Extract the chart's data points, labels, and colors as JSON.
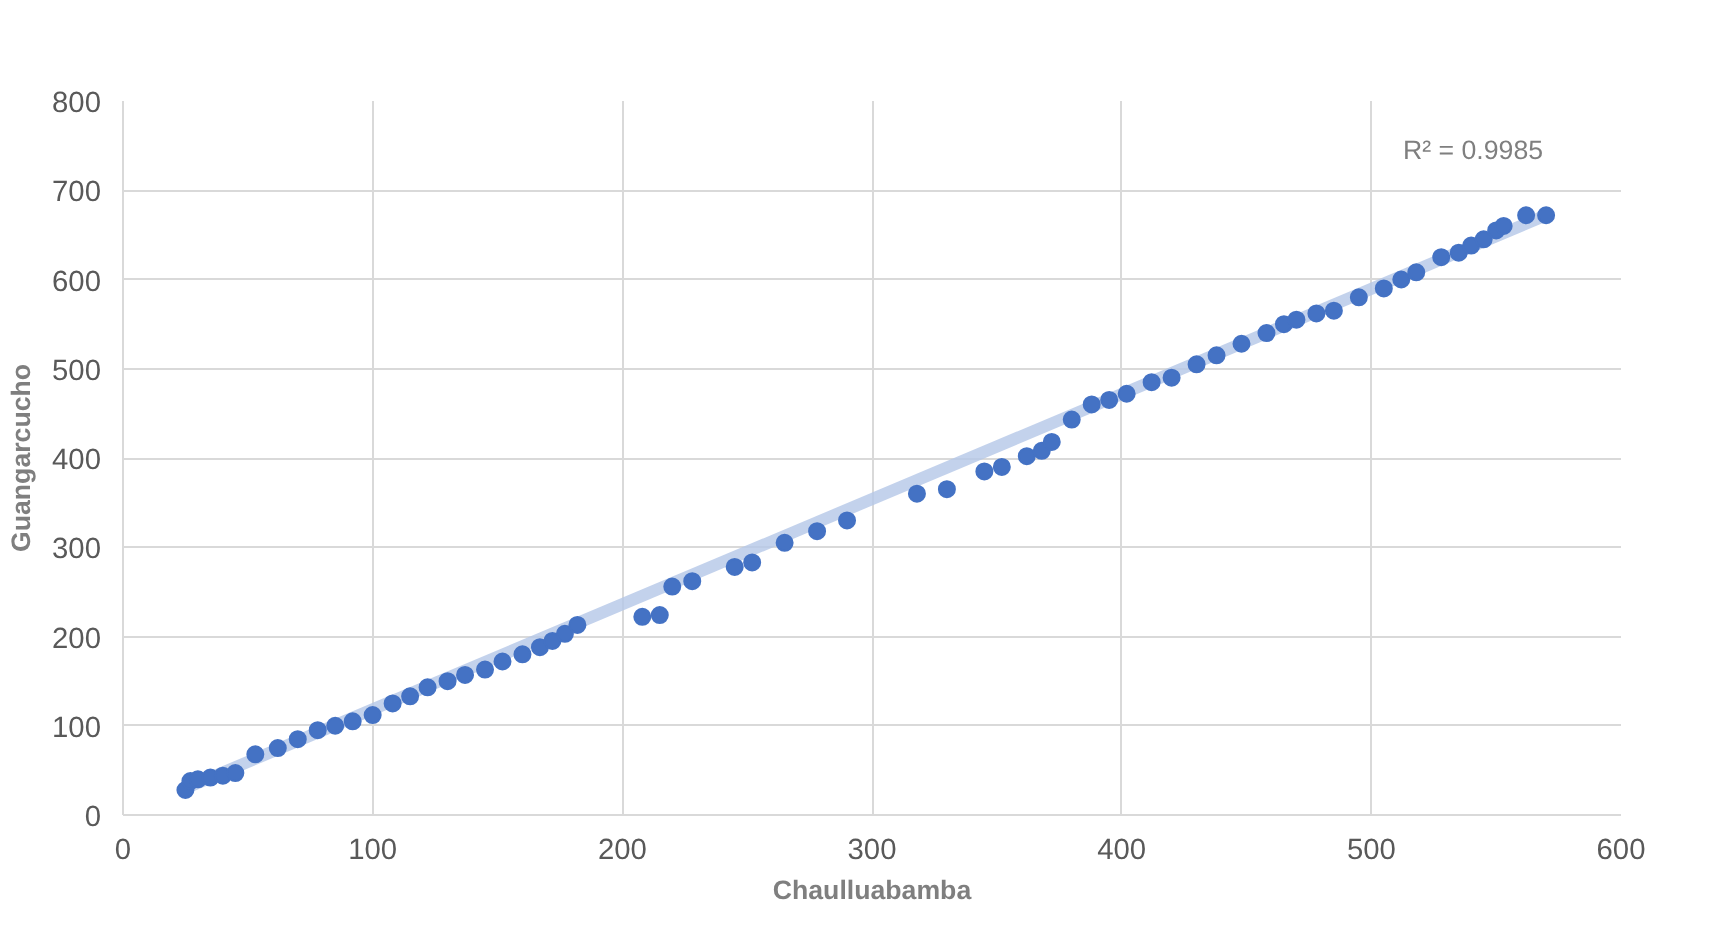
{
  "chart_data": {
    "type": "scatter",
    "xlabel": "Chaulluabamba",
    "ylabel": "Guangarcucho",
    "x": [
      25,
      27,
      30,
      35,
      40,
      45,
      53,
      62,
      70,
      78,
      85,
      92,
      100,
      108,
      115,
      122,
      130,
      137,
      145,
      152,
      160,
      167,
      172,
      177,
      182,
      208,
      215,
      220,
      228,
      245,
      252,
      265,
      278,
      290,
      318,
      330,
      345,
      352,
      362,
      368,
      372,
      380,
      388,
      395,
      402,
      412,
      420,
      430,
      438,
      448,
      458,
      465,
      470,
      478,
      485,
      495,
      505,
      512,
      518,
      528,
      535,
      540,
      545,
      550,
      553,
      562,
      570
    ],
    "series": [
      {
        "color": "#4472c4",
        "values": [
          28,
          38,
          40,
          42,
          44,
          47,
          68,
          75,
          85,
          95,
          100,
          105,
          112,
          125,
          133,
          143,
          150,
          157,
          163,
          172,
          180,
          188,
          195,
          203,
          213,
          222,
          224,
          256,
          262,
          278,
          283,
          305,
          318,
          330,
          360,
          365,
          385,
          390,
          402,
          408,
          418,
          443,
          460,
          465,
          472,
          485,
          490,
          505,
          515,
          528,
          540,
          550,
          555,
          562,
          565,
          580,
          590,
          600,
          608,
          625,
          630,
          638,
          645,
          655,
          660,
          672,
          672
        ]
      },
      {
        "type": "line",
        "marker": "none",
        "color": "#b4c7e7",
        "x": [
          25,
          570
        ],
        "values": [
          30,
          672
        ]
      }
    ],
    "annotations": [
      "R² = 0.9985"
    ],
    "marker": "circle",
    "grid": true,
    "xlim": [
      0,
      600
    ],
    "xticks": [
      0,
      100,
      200,
      300,
      400,
      500,
      600
    ],
    "ylim": [
      0,
      800
    ],
    "yticks": [
      0,
      100,
      200,
      300,
      400,
      500,
      600,
      700,
      800
    ]
  }
}
